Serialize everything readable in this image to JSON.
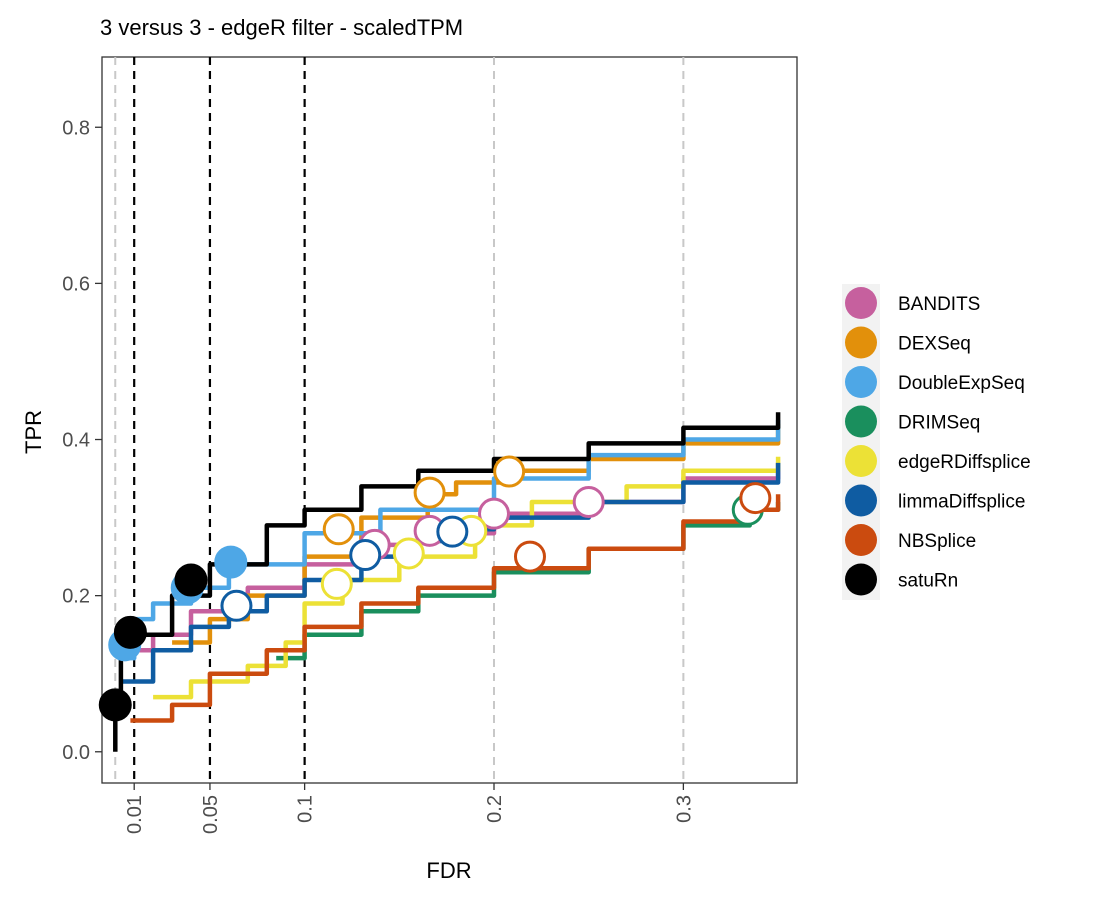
{
  "chart_data": {
    "type": "line",
    "title": "3 versus 3 - edgeR filter - scaledTPM",
    "xlabel": "FDR",
    "ylabel": "TPR",
    "x_ticks": [
      {
        "value": 0.01,
        "label": "0.01"
      },
      {
        "value": 0.05,
        "label": "0.05"
      },
      {
        "value": 0.1,
        "label": "0.1"
      },
      {
        "value": 0.2,
        "label": "0.2"
      },
      {
        "value": 0.3,
        "label": "0.3"
      }
    ],
    "y_ticks": [
      {
        "value": 0.0,
        "label": "0.0"
      },
      {
        "value": 0.2,
        "label": "0.2"
      },
      {
        "value": 0.4,
        "label": "0.4"
      },
      {
        "value": 0.6,
        "label": "0.6"
      },
      {
        "value": 0.8,
        "label": "0.8"
      }
    ],
    "xlim": [
      -0.007,
      0.36
    ],
    "ylim": [
      -0.04,
      0.89
    ],
    "vlines_dashed_black": [
      0.01,
      0.05,
      0.1
    ],
    "vlines_dashed_grey": [
      0.0,
      0.2,
      0.3
    ],
    "legend_position": "right",
    "grid": false,
    "series": [
      {
        "name": "BANDITS",
        "color": "#c6609e",
        "line": [
          [
            0.012,
            0.13
          ],
          [
            0.02,
            0.15
          ],
          [
            0.04,
            0.18
          ],
          [
            0.07,
            0.21
          ],
          [
            0.1,
            0.24
          ],
          [
            0.13,
            0.265
          ],
          [
            0.16,
            0.28
          ],
          [
            0.2,
            0.305
          ],
          [
            0.25,
            0.32
          ],
          [
            0.3,
            0.35
          ],
          [
            0.35,
            0.37
          ]
        ],
        "filled": [],
        "open": [
          [
            0.137,
            0.265
          ],
          [
            0.166,
            0.283
          ],
          [
            0.2,
            0.305
          ],
          [
            0.25,
            0.32
          ]
        ]
      },
      {
        "name": "DEXSeq",
        "color": "#e2900b",
        "line": [
          [
            0.03,
            0.14
          ],
          [
            0.05,
            0.17
          ],
          [
            0.07,
            0.2
          ],
          [
            0.1,
            0.25
          ],
          [
            0.13,
            0.3
          ],
          [
            0.165,
            0.33
          ],
          [
            0.18,
            0.345
          ],
          [
            0.21,
            0.36
          ],
          [
            0.25,
            0.375
          ],
          [
            0.3,
            0.395
          ],
          [
            0.35,
            0.42
          ]
        ],
        "filled": [],
        "open": [
          [
            0.118,
            0.285
          ],
          [
            0.166,
            0.332
          ],
          [
            0.208,
            0.359
          ]
        ]
      },
      {
        "name": "DoubleExpSeq",
        "color": "#4ea7e6",
        "line": [
          [
            0.003,
            0.12
          ],
          [
            0.01,
            0.17
          ],
          [
            0.02,
            0.19
          ],
          [
            0.04,
            0.21
          ],
          [
            0.06,
            0.24
          ],
          [
            0.1,
            0.28
          ],
          [
            0.14,
            0.31
          ],
          [
            0.2,
            0.35
          ],
          [
            0.25,
            0.38
          ],
          [
            0.3,
            0.4
          ],
          [
            0.35,
            0.425
          ]
        ],
        "filled": [
          [
            0.005,
            0.137
          ],
          [
            0.038,
            0.21
          ],
          [
            0.061,
            0.243
          ]
        ],
        "open": []
      },
      {
        "name": "DRIMSeq",
        "color": "#1a8f5d",
        "line": [
          [
            0.085,
            0.12
          ],
          [
            0.1,
            0.15
          ],
          [
            0.13,
            0.18
          ],
          [
            0.16,
            0.2
          ],
          [
            0.2,
            0.23
          ],
          [
            0.25,
            0.26
          ],
          [
            0.3,
            0.29
          ],
          [
            0.335,
            0.31
          ],
          [
            0.35,
            0.32
          ]
        ],
        "filled": [],
        "open": [
          [
            0.334,
            0.31
          ]
        ]
      },
      {
        "name": "edgeRDiffsplice",
        "color": "#ece136",
        "line": [
          [
            0.02,
            0.07
          ],
          [
            0.04,
            0.09
          ],
          [
            0.07,
            0.11
          ],
          [
            0.09,
            0.14
          ],
          [
            0.1,
            0.19
          ],
          [
            0.12,
            0.22
          ],
          [
            0.15,
            0.25
          ],
          [
            0.19,
            0.29
          ],
          [
            0.22,
            0.32
          ],
          [
            0.27,
            0.34
          ],
          [
            0.3,
            0.36
          ],
          [
            0.35,
            0.378
          ]
        ],
        "filled": [],
        "open": [
          [
            0.117,
            0.215
          ],
          [
            0.155,
            0.254
          ],
          [
            0.188,
            0.283
          ]
        ]
      },
      {
        "name": "limmaDiffsplice",
        "color": "#0f5ca2",
        "line": [
          [
            0.003,
            0.09
          ],
          [
            0.02,
            0.13
          ],
          [
            0.04,
            0.16
          ],
          [
            0.06,
            0.18
          ],
          [
            0.08,
            0.2
          ],
          [
            0.1,
            0.22
          ],
          [
            0.13,
            0.25
          ],
          [
            0.16,
            0.27
          ],
          [
            0.18,
            0.285
          ],
          [
            0.2,
            0.3
          ],
          [
            0.25,
            0.32
          ],
          [
            0.3,
            0.345
          ],
          [
            0.35,
            0.37
          ]
        ],
        "filled": [],
        "open": [
          [
            0.064,
            0.187
          ],
          [
            0.132,
            0.252
          ],
          [
            0.178,
            0.282
          ]
        ]
      },
      {
        "name": "NBSplice",
        "color": "#cb4b0f",
        "line": [
          [
            0.008,
            0.04
          ],
          [
            0.03,
            0.06
          ],
          [
            0.05,
            0.1
          ],
          [
            0.08,
            0.13
          ],
          [
            0.1,
            0.16
          ],
          [
            0.13,
            0.19
          ],
          [
            0.16,
            0.21
          ],
          [
            0.2,
            0.235
          ],
          [
            0.25,
            0.26
          ],
          [
            0.3,
            0.295
          ],
          [
            0.33,
            0.31
          ],
          [
            0.35,
            0.33
          ]
        ],
        "filled": [],
        "open": [
          [
            0.219,
            0.25
          ],
          [
            0.338,
            0.325
          ]
        ]
      },
      {
        "name": "satuRn",
        "color": "#000000",
        "line": [
          [
            0.0,
            0.0
          ],
          [
            0.0,
            0.06
          ],
          [
            0.003,
            0.13
          ],
          [
            0.01,
            0.15
          ],
          [
            0.03,
            0.2
          ],
          [
            0.05,
            0.24
          ],
          [
            0.08,
            0.29
          ],
          [
            0.1,
            0.31
          ],
          [
            0.13,
            0.34
          ],
          [
            0.16,
            0.36
          ],
          [
            0.2,
            0.375
          ],
          [
            0.25,
            0.395
          ],
          [
            0.3,
            0.415
          ],
          [
            0.35,
            0.435
          ]
        ],
        "filled": [
          [
            0.0,
            0.06
          ],
          [
            0.008,
            0.153
          ],
          [
            0.04,
            0.22
          ]
        ],
        "open": []
      }
    ]
  }
}
